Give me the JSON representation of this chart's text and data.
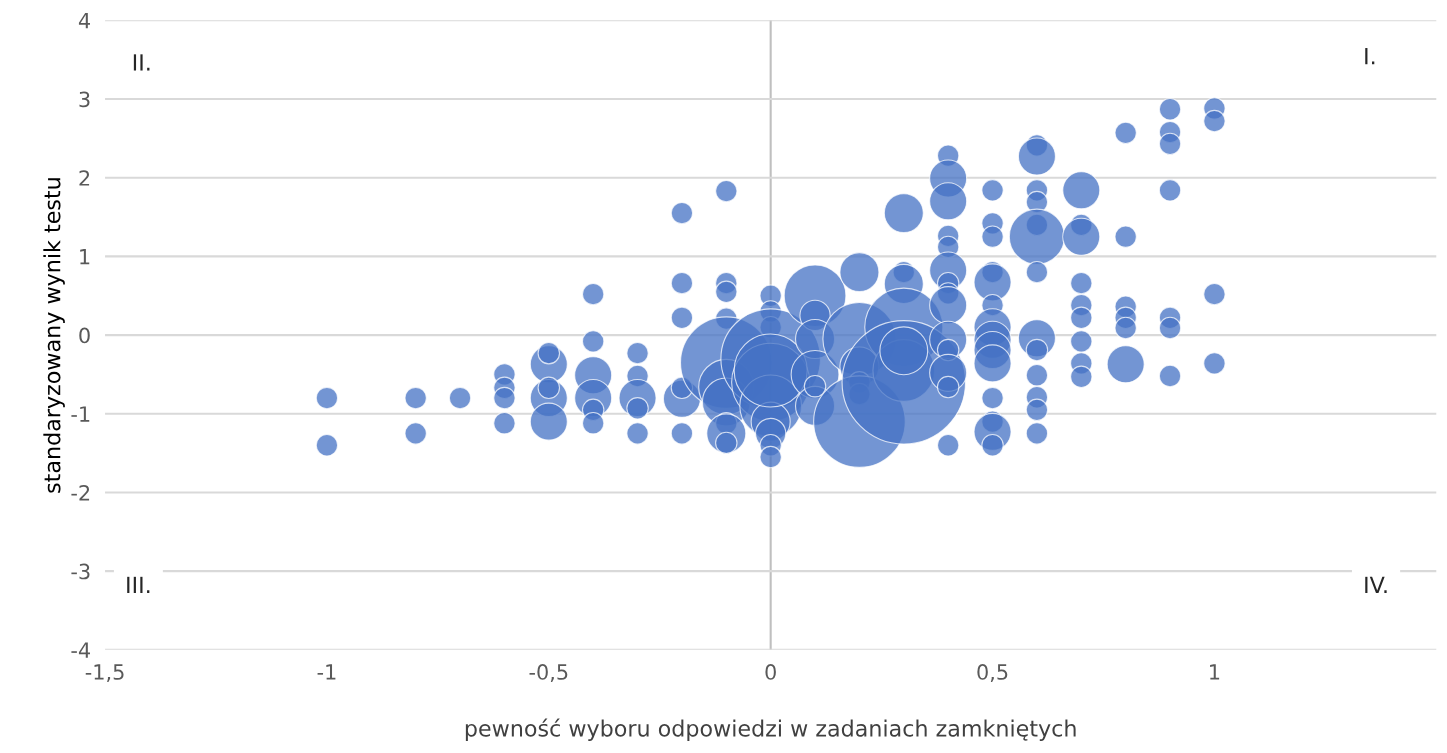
{
  "chart_data": {
    "type": "bubble",
    "xlabel": "pewność wyboru odpowiedzi w zadaniach zamkniętych",
    "ylabel": "standaryzowany wynik testu",
    "annotations": [
      "I.",
      "II.",
      "III.",
      "IV."
    ],
    "xlim": [
      -1.5,
      1.5
    ],
    "ylim": [
      -4,
      4
    ],
    "xticks": [
      {
        "value": -1.5,
        "label": "-1,5"
      },
      -1,
      {
        "value": -0.5,
        "label": "-0,5"
      },
      0,
      {
        "value": 0.5,
        "label": "0,5"
      },
      1
    ],
    "yticks": [
      -4,
      -3,
      -2,
      -1,
      0,
      1,
      2,
      3,
      4
    ],
    "grid": "y",
    "legend": false,
    "ref_lines": [
      {
        "axis": "x",
        "value": 0,
        "color": "#bfbfbf"
      }
    ],
    "series": [
      {
        "color": "#4472c4",
        "x": [
          -1,
          -1,
          -0.8,
          -0.8,
          -0.7,
          -0.6,
          -0.6,
          -0.6,
          -0.6,
          -0.5,
          -0.5,
          -0.5,
          -0.5,
          -0.5,
          -0.4,
          -0.4,
          -0.4,
          -0.4,
          -0.4,
          -0.4,
          -0.3,
          -0.3,
          -0.3,
          -0.3,
          -0.3,
          -0.2,
          -0.2,
          -0.2,
          -0.2,
          -0.2,
          -0.2,
          -0.1,
          -0.1,
          -0.1,
          -0.1,
          -0.1,
          -0.1,
          -0.1,
          -0.1,
          -0.1,
          -0.1,
          0,
          0,
          0,
          0,
          0,
          0,
          0,
          0,
          0,
          0,
          0,
          0.1,
          0.1,
          0.1,
          0.1,
          0.1,
          0.1,
          0.2,
          0.2,
          0.2,
          0.2,
          0.2,
          0.2,
          0.3,
          0.3,
          0.3,
          0.3,
          0.3,
          0.3,
          0.3,
          0.4,
          0.4,
          0.4,
          0.4,
          0.4,
          0.4,
          0.4,
          0.4,
          0.4,
          0.4,
          0.4,
          0.4,
          0.4,
          0.4,
          0.5,
          0.5,
          0.5,
          0.5,
          0.5,
          0.5,
          0.5,
          0.5,
          0.5,
          0.5,
          0.5,
          0.5,
          0.5,
          0.5,
          0.6,
          0.6,
          0.6,
          0.6,
          0.6,
          0.6,
          0.6,
          0.6,
          0.6,
          0.6,
          0.6,
          0.6,
          0.6,
          0.7,
          0.7,
          0.7,
          0.7,
          0.7,
          0.7,
          0.7,
          0.7,
          0.7,
          0.8,
          0.8,
          0.8,
          0.8,
          0.8,
          0.8,
          0.9,
          0.9,
          0.9,
          0.9,
          0.9,
          0.9,
          0.9,
          1,
          1,
          1,
          1
        ],
        "values": [
          -0.8,
          -1.4,
          -0.8,
          -1.25,
          -0.8,
          -0.5,
          -0.67,
          -0.8,
          -1.12,
          -0.37,
          -0.23,
          -0.8,
          -0.67,
          -1.1,
          0.52,
          -0.08,
          -0.51,
          -0.8,
          -0.95,
          -1.12,
          -0.23,
          -0.52,
          -0.8,
          -0.93,
          -1.25,
          1.55,
          0.66,
          0.22,
          -0.81,
          -0.67,
          -1.25,
          1.83,
          0.66,
          0.55,
          0.21,
          -0.35,
          -0.66,
          -0.85,
          -1.12,
          -1.25,
          -1.37,
          0.5,
          0.3,
          0.1,
          -0.3,
          -0.6,
          -0.9,
          -1.1,
          -1.25,
          -1.4,
          -1.55,
          -0.45,
          0.5,
          0.25,
          -0.05,
          -0.5,
          -0.9,
          -0.65,
          0.8,
          -0.05,
          -0.4,
          -0.6,
          -0.75,
          -1.1,
          1.55,
          0.8,
          0.65,
          0.1,
          -0.45,
          -0.6,
          -0.2,
          2.28,
          1.99,
          1.7,
          1.26,
          1.12,
          0.82,
          0.66,
          0.53,
          0.38,
          -0.06,
          -0.19,
          -0.48,
          -0.66,
          -1.4,
          1.84,
          1.42,
          1.25,
          0.8,
          0.67,
          0.38,
          0.1,
          -0.06,
          -0.19,
          -0.36,
          -0.8,
          -1.1,
          -1.23,
          -1.4,
          2.41,
          2.27,
          1.84,
          1.69,
          1.4,
          1.25,
          0.8,
          -0.04,
          -0.19,
          -0.51,
          -0.79,
          -0.95,
          -1.25,
          1.84,
          1.4,
          1.25,
          0.66,
          0.38,
          0.22,
          -0.08,
          -0.36,
          -0.53,
          2.57,
          1.25,
          0.36,
          0.22,
          0.09,
          -0.37,
          2.87,
          2.58,
          2.43,
          1.84,
          0.22,
          0.09,
          -0.52,
          2.88,
          2.72,
          0.52,
          -0.36
        ],
        "sizes": [
          0.03,
          0.03,
          0.03,
          0.03,
          0.03,
          0.03,
          0.03,
          0.03,
          0.03,
          0.09,
          0.03,
          0.09,
          0.03,
          0.09,
          0.03,
          0.03,
          0.09,
          0.09,
          0.03,
          0.03,
          0.03,
          0.03,
          0.09,
          0.03,
          0.03,
          0.03,
          0.03,
          0.03,
          0.09,
          0.03,
          0.03,
          0.03,
          0.03,
          0.03,
          0.03,
          0.55,
          0.2,
          0.15,
          0.03,
          0.1,
          0.03,
          0.03,
          0.03,
          0.03,
          0.65,
          0.4,
          0.25,
          0.1,
          0.06,
          0.03,
          0.03,
          0.35,
          0.25,
          0.06,
          0.1,
          0.15,
          0.1,
          0.03,
          0.1,
          0.35,
          0.1,
          0.03,
          0.03,
          0.55,
          0.1,
          0.03,
          0.1,
          0.4,
          0.25,
          1,
          0.15,
          0.03,
          0.09,
          0.09,
          0.03,
          0.03,
          0.09,
          0.03,
          0.03,
          0.09,
          0.09,
          0.03,
          0.09,
          0.03,
          0.03,
          0.03,
          0.03,
          0.03,
          0.03,
          0.09,
          0.03,
          0.09,
          0.09,
          0.09,
          0.09,
          0.03,
          0.03,
          0.09,
          0.03,
          0.03,
          0.09,
          0.03,
          0.03,
          0.03,
          0.2,
          0.03,
          0.09,
          0.03,
          0.03,
          0.03,
          0.03,
          0.03,
          0.09,
          0.03,
          0.09,
          0.03,
          0.03,
          0.03,
          0.03,
          0.03,
          0.03,
          0.03,
          0.03,
          0.03,
          0.03,
          0.03,
          0.09,
          0.03,
          0.03,
          0.03,
          0.03,
          0.03,
          0.03,
          0.03,
          0.03,
          0.03,
          0.03,
          0.03
        ]
      }
    ]
  }
}
